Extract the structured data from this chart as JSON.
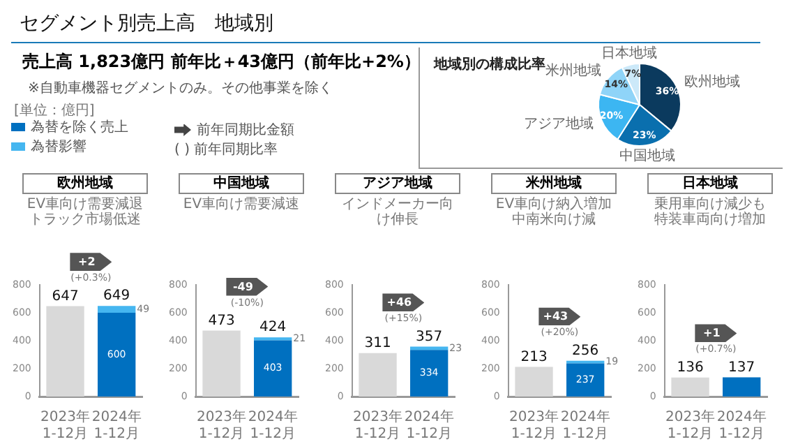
{
  "chart_data": [
    {
      "type": "other",
      "title": "セグメント別売上高　地域別",
      "subtitle": "売上高 1,823億円 前年比＋43億円（前年比+2%）",
      "annotations": [
        "※自動車機器セグメントのみ。その他事業を除く",
        "[単位：億円]",
        "前年同期比金額",
        "( ) 前年同期比率"
      ]
    },
    {
      "type": "pie",
      "title": "地域別の構成比率",
      "categories": [
        "欧州地域",
        "中国地域",
        "アジア地域",
        "米州地域",
        "日本地域"
      ],
      "values": [
        36,
        23,
        20,
        14,
        7
      ],
      "value_labels": [
        "36%",
        "23%",
        "20%",
        "14%",
        "7%"
      ],
      "colors": [
        "#0b3a5e",
        "#0a6fae",
        "#3cb6f2",
        "#8fd4f8",
        "#cce9f9"
      ]
    },
    {
      "type": "bar",
      "title": "欧州地域",
      "subtitle": "EV車向け需要減退トラック市場低迷",
      "categories": [
        "2023年\n1-12月",
        "2024年\n1-12月"
      ],
      "stacked": true,
      "legend": "top left",
      "ylim": [
        0,
        800
      ],
      "yticks": [
        0,
        200,
        400,
        600,
        800
      ],
      "totals": [
        "647",
        "649"
      ],
      "annotations": [
        "+2",
        "(+0.3%)"
      ],
      "series": [
        {
          "color": "#d9d9d9",
          "values": [
            647,
            null
          ]
        },
        {
          "name": "為替を除く売上",
          "color": "#0070c0",
          "values": [
            null,
            600
          ],
          "value_labels": [
            null,
            "600"
          ]
        },
        {
          "name": "為替影響",
          "color": "#45b6f0",
          "values": [
            null,
            49
          ],
          "value_labels": [
            null,
            "49"
          ]
        }
      ]
    },
    {
      "type": "bar",
      "title": "中国地域",
      "subtitle": "EV車向け需要減速",
      "categories": [
        "2023年\n1-12月",
        "2024年\n1-12月"
      ],
      "stacked": true,
      "ylim": [
        0,
        800
      ],
      "yticks": [
        0,
        200,
        400,
        600,
        800
      ],
      "totals": [
        "473",
        "424"
      ],
      "annotations": [
        "-49",
        "(-10%)"
      ],
      "series": [
        {
          "color": "#d9d9d9",
          "values": [
            473,
            null
          ]
        },
        {
          "color": "#0070c0",
          "values": [
            null,
            403
          ],
          "value_labels": [
            null,
            "403"
          ]
        },
        {
          "color": "#45b6f0",
          "values": [
            null,
            21
          ],
          "value_labels": [
            null,
            "21"
          ]
        }
      ]
    },
    {
      "type": "bar",
      "title": "アジア地域",
      "subtitle": "インドメーカー向け伸長",
      "categories": [
        "2023年\n1-12月",
        "2024年\n1-12月"
      ],
      "stacked": true,
      "ylim": [
        0,
        800
      ],
      "yticks": [
        0,
        200,
        400,
        600,
        800
      ],
      "totals": [
        "311",
        "357"
      ],
      "annotations": [
        "+46",
        "(+15%)"
      ],
      "series": [
        {
          "color": "#d9d9d9",
          "values": [
            311,
            null
          ]
        },
        {
          "color": "#0070c0",
          "values": [
            null,
            334
          ],
          "value_labels": [
            null,
            "334"
          ]
        },
        {
          "color": "#45b6f0",
          "values": [
            null,
            23
          ],
          "value_labels": [
            null,
            "23"
          ]
        }
      ]
    },
    {
      "type": "bar",
      "title": "米州地域",
      "subtitle": "EV車向け納入増加中南米向け減",
      "categories": [
        "2023年\n1-12月",
        "2024年\n1-12月"
      ],
      "stacked": true,
      "ylim": [
        0,
        800
      ],
      "yticks": [
        0,
        200,
        400,
        600,
        800
      ],
      "totals": [
        "213",
        "256"
      ],
      "annotations": [
        "+43",
        "(+20%)"
      ],
      "series": [
        {
          "color": "#d9d9d9",
          "values": [
            213,
            null
          ]
        },
        {
          "color": "#0070c0",
          "values": [
            null,
            237
          ],
          "value_labels": [
            null,
            "237"
          ]
        },
        {
          "color": "#45b6f0",
          "values": [
            null,
            19
          ],
          "value_labels": [
            null,
            "19"
          ]
        }
      ]
    },
    {
      "type": "bar",
      "title": "日本地域",
      "subtitle": "乗用車向け減少も特装車両向け増加",
      "categories": [
        "2023年\n1-12月",
        "2024年\n1-12月"
      ],
      "stacked": true,
      "ylim": [
        0,
        800
      ],
      "yticks": [
        0,
        200,
        400,
        600,
        800
      ],
      "totals": [
        "136",
        "137"
      ],
      "annotations": [
        "+1",
        "(+0.7%)"
      ],
      "series": [
        {
          "color": "#d9d9d9",
          "values": [
            136,
            null
          ]
        },
        {
          "color": "#0070c0",
          "values": [
            null,
            137
          ]
        }
      ]
    }
  ]
}
